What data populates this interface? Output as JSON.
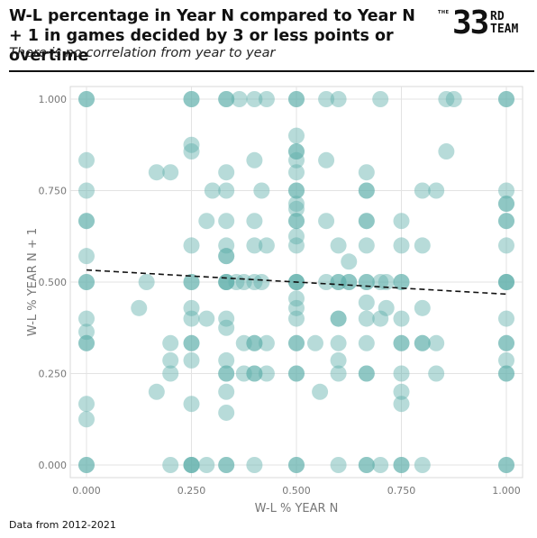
{
  "header": {
    "title": "W-L percentage in Year N compared to Year N + 1 in games decided by 3 or less points or overtime",
    "subtitle": "There is no correlation from year to year",
    "logo_small": "THE",
    "logo_number": "33",
    "logo_rd": "RD",
    "logo_team": "TEAM"
  },
  "footer": {
    "note": "Data from 2012-2021"
  },
  "chart_data": {
    "type": "scatter",
    "xlabel": "W-L % YEAR N",
    "ylabel": "W-L % YEAR N + 1",
    "xlim": [
      0,
      1
    ],
    "ylim": [
      0,
      1
    ],
    "xticks": [
      "0.000",
      "0.250",
      "0.500",
      "0.750",
      "1.000"
    ],
    "yticks": [
      "0.000",
      "0.250",
      "0.500",
      "0.750",
      "1.000"
    ],
    "grid": true,
    "point_color": "#5fb0ab",
    "trendline": {
      "style": "dashed",
      "color": "#111111",
      "x": [
        0,
        1
      ],
      "y": [
        0.533,
        0.467
      ]
    },
    "points": [
      [
        0,
        1
      ],
      [
        0,
        1
      ],
      [
        0,
        0.833
      ],
      [
        0,
        0.75
      ],
      [
        0,
        0.667
      ],
      [
        0,
        0.667
      ],
      [
        0,
        0.571
      ],
      [
        0,
        0.5
      ],
      [
        0,
        0.5
      ],
      [
        0,
        0.4
      ],
      [
        0,
        0.364
      ],
      [
        0,
        0.333
      ],
      [
        0,
        0.333
      ],
      [
        0,
        0.167
      ],
      [
        0,
        0.125
      ],
      [
        0,
        0
      ],
      [
        0,
        0
      ],
      [
        0.125,
        0.429
      ],
      [
        0.143,
        0.5
      ],
      [
        0.167,
        0.8
      ],
      [
        0.167,
        0.2
      ],
      [
        0.2,
        0.8
      ],
      [
        0.2,
        0.333
      ],
      [
        0.2,
        0.286
      ],
      [
        0.2,
        0.25
      ],
      [
        0.2,
        0
      ],
      [
        0.25,
        1
      ],
      [
        0.25,
        1
      ],
      [
        0.25,
        0.875
      ],
      [
        0.25,
        0.857
      ],
      [
        0.25,
        0.6
      ],
      [
        0.25,
        0.5
      ],
      [
        0.25,
        0.5
      ],
      [
        0.25,
        0.429
      ],
      [
        0.25,
        0.4
      ],
      [
        0.25,
        0.333
      ],
      [
        0.25,
        0.333
      ],
      [
        0.25,
        0.286
      ],
      [
        0.25,
        0.167
      ],
      [
        0.25,
        0
      ],
      [
        0.25,
        0
      ],
      [
        0.25,
        0
      ],
      [
        0.286,
        0.667
      ],
      [
        0.286,
        0.4
      ],
      [
        0.286,
        0
      ],
      [
        0.3,
        0.75
      ],
      [
        0.333,
        1
      ],
      [
        0.333,
        1
      ],
      [
        0.333,
        0.8
      ],
      [
        0.333,
        0.75
      ],
      [
        0.333,
        0.667
      ],
      [
        0.333,
        0.6
      ],
      [
        0.333,
        0.571
      ],
      [
        0.333,
        0.571
      ],
      [
        0.333,
        0.5
      ],
      [
        0.333,
        0.5
      ],
      [
        0.333,
        0.5
      ],
      [
        0.333,
        0.4
      ],
      [
        0.333,
        0.375
      ],
      [
        0.333,
        0.286
      ],
      [
        0.333,
        0.25
      ],
      [
        0.333,
        0.25
      ],
      [
        0.333,
        0.2
      ],
      [
        0.333,
        0.143
      ],
      [
        0.333,
        0
      ],
      [
        0.333,
        0
      ],
      [
        0.357,
        0.5
      ],
      [
        0.364,
        1
      ],
      [
        0.375,
        0.5
      ],
      [
        0.375,
        0.25
      ],
      [
        0.375,
        0.333
      ],
      [
        0.4,
        1
      ],
      [
        0.4,
        0.833
      ],
      [
        0.4,
        0.667
      ],
      [
        0.4,
        0.6
      ],
      [
        0.4,
        0.5
      ],
      [
        0.4,
        0.333
      ],
      [
        0.4,
        0.333
      ],
      [
        0.4,
        0.25
      ],
      [
        0.4,
        0.25
      ],
      [
        0.4,
        0
      ],
      [
        0.417,
        0.5
      ],
      [
        0.417,
        0.75
      ],
      [
        0.429,
        1
      ],
      [
        0.429,
        0.6
      ],
      [
        0.429,
        0.333
      ],
      [
        0.429,
        0.25
      ],
      [
        0.5,
        1
      ],
      [
        0.5,
        1
      ],
      [
        0.5,
        0.9
      ],
      [
        0.5,
        0.857
      ],
      [
        0.5,
        0.857
      ],
      [
        0.5,
        0.833
      ],
      [
        0.5,
        0.8
      ],
      [
        0.5,
        0.75
      ],
      [
        0.5,
        0.75
      ],
      [
        0.5,
        0.714
      ],
      [
        0.5,
        0.7
      ],
      [
        0.5,
        0.667
      ],
      [
        0.5,
        0.667
      ],
      [
        0.5,
        0.625
      ],
      [
        0.5,
        0.6
      ],
      [
        0.5,
        0.5
      ],
      [
        0.5,
        0.5
      ],
      [
        0.5,
        0.5
      ],
      [
        0.5,
        0.455
      ],
      [
        0.5,
        0.429
      ],
      [
        0.5,
        0.4
      ],
      [
        0.5,
        0.333
      ],
      [
        0.5,
        0.333
      ],
      [
        0.5,
        0.25
      ],
      [
        0.5,
        0.25
      ],
      [
        0.5,
        0
      ],
      [
        0.5,
        0
      ],
      [
        0.545,
        0.333
      ],
      [
        0.556,
        0.2
      ],
      [
        0.571,
        1
      ],
      [
        0.571,
        0.833
      ],
      [
        0.571,
        0.667
      ],
      [
        0.571,
        0.5
      ],
      [
        0.6,
        1
      ],
      [
        0.6,
        0.6
      ],
      [
        0.6,
        0.5
      ],
      [
        0.6,
        0.5
      ],
      [
        0.6,
        0.4
      ],
      [
        0.6,
        0.4
      ],
      [
        0.6,
        0.333
      ],
      [
        0.6,
        0.286
      ],
      [
        0.6,
        0.25
      ],
      [
        0.6,
        0
      ],
      [
        0.625,
        0.556
      ],
      [
        0.625,
        0.5
      ],
      [
        0.625,
        0.5
      ],
      [
        0.667,
        0.8
      ],
      [
        0.667,
        0.75
      ],
      [
        0.667,
        0.75
      ],
      [
        0.667,
        0.667
      ],
      [
        0.667,
        0.667
      ],
      [
        0.667,
        0.6
      ],
      [
        0.667,
        0.5
      ],
      [
        0.667,
        0.5
      ],
      [
        0.667,
        0.444
      ],
      [
        0.667,
        0.4
      ],
      [
        0.667,
        0.333
      ],
      [
        0.667,
        0.25
      ],
      [
        0.667,
        0.25
      ],
      [
        0.667,
        0
      ],
      [
        0.667,
        0
      ],
      [
        0.7,
        1
      ],
      [
        0.7,
        0.5
      ],
      [
        0.7,
        0.4
      ],
      [
        0.7,
        0
      ],
      [
        0.714,
        0.5
      ],
      [
        0.714,
        0.429
      ],
      [
        0.75,
        0.667
      ],
      [
        0.75,
        0.6
      ],
      [
        0.75,
        0.5
      ],
      [
        0.75,
        0.5
      ],
      [
        0.75,
        0.4
      ],
      [
        0.75,
        0.333
      ],
      [
        0.75,
        0.333
      ],
      [
        0.75,
        0.25
      ],
      [
        0.75,
        0.2
      ],
      [
        0.75,
        0.167
      ],
      [
        0.75,
        0
      ],
      [
        0.75,
        0
      ],
      [
        0.8,
        0.75
      ],
      [
        0.8,
        0.6
      ],
      [
        0.8,
        0.429
      ],
      [
        0.8,
        0.333
      ],
      [
        0.8,
        0.333
      ],
      [
        0.8,
        0
      ],
      [
        0.833,
        0.75
      ],
      [
        0.833,
        0.333
      ],
      [
        0.833,
        0.25
      ],
      [
        0.857,
        1
      ],
      [
        0.857,
        0.857
      ],
      [
        0.875,
        1
      ],
      [
        1,
        1
      ],
      [
        1,
        1
      ],
      [
        1,
        0.75
      ],
      [
        1,
        0.714
      ],
      [
        1,
        0.714
      ],
      [
        1,
        0.667
      ],
      [
        1,
        0.667
      ],
      [
        1,
        0.6
      ],
      [
        1,
        0.5
      ],
      [
        1,
        0.5
      ],
      [
        1,
        0.5
      ],
      [
        1,
        0.4
      ],
      [
        1,
        0.333
      ],
      [
        1,
        0.333
      ],
      [
        1,
        0.286
      ],
      [
        1,
        0.25
      ],
      [
        1,
        0.25
      ],
      [
        1,
        0
      ],
      [
        1,
        0
      ]
    ]
  }
}
